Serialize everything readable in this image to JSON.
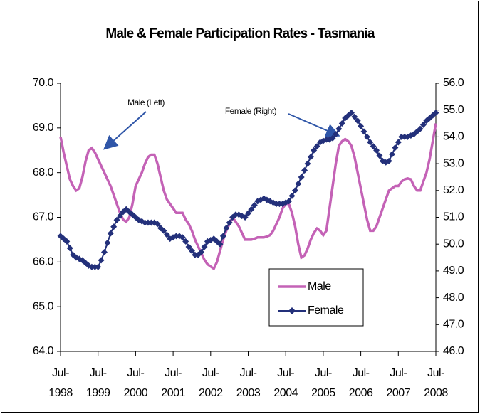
{
  "chart_data": {
    "type": "line",
    "title": "Male & Female Participation Rates - Tasmania",
    "categories": [
      "Jul-1998",
      null,
      null,
      null,
      null,
      null,
      null,
      null,
      null,
      null,
      null,
      null,
      "Jul-1999",
      null,
      null,
      null,
      null,
      null,
      null,
      null,
      null,
      null,
      null,
      null,
      "Jul-2000",
      null,
      null,
      null,
      null,
      null,
      null,
      null,
      null,
      null,
      null,
      null,
      "Jul-2001",
      null,
      null,
      null,
      null,
      null,
      null,
      null,
      null,
      null,
      null,
      null,
      "Jul-2002",
      null,
      null,
      null,
      null,
      null,
      null,
      null,
      null,
      null,
      null,
      null,
      "Jul-2003",
      null,
      null,
      null,
      null,
      null,
      null,
      null,
      null,
      null,
      null,
      null,
      "Jul-2004",
      null,
      null,
      null,
      null,
      null,
      null,
      null,
      null,
      null,
      null,
      null,
      "Jul-2005",
      null,
      null,
      null,
      null,
      null,
      null,
      null,
      null,
      null,
      null,
      null,
      "Jul-2006",
      null,
      null,
      null,
      null,
      null,
      null,
      null,
      null,
      null,
      null,
      null,
      "Jul-2007",
      null,
      null,
      null,
      null,
      null,
      null,
      null,
      null,
      null,
      null,
      null,
      "Jul-2008"
    ],
    "series": [
      {
        "name": "Male",
        "color": "#c462b6",
        "axis": "y",
        "values": [
          68.8,
          68.45,
          68.15,
          67.85,
          67.7,
          67.6,
          67.65,
          67.9,
          68.25,
          68.5,
          68.55,
          68.45,
          68.3,
          68.15,
          68.0,
          67.85,
          67.7,
          67.5,
          67.3,
          67.1,
          66.95,
          66.9,
          67.0,
          67.3,
          67.7,
          67.85,
          68.0,
          68.2,
          68.35,
          68.4,
          68.4,
          68.2,
          67.9,
          67.6,
          67.4,
          67.3,
          67.2,
          67.1,
          67.1,
          67.1,
          66.95,
          66.85,
          66.7,
          66.5,
          66.35,
          66.2,
          66.05,
          65.95,
          65.9,
          65.85,
          66.0,
          66.25,
          66.5,
          66.7,
          66.85,
          67.0,
          66.9,
          66.8,
          66.65,
          66.5,
          66.5,
          66.5,
          66.52,
          66.55,
          66.55,
          66.55,
          66.57,
          66.6,
          66.7,
          66.85,
          67.0,
          67.2,
          67.3,
          67.3,
          67.1,
          66.8,
          66.4,
          66.1,
          66.15,
          66.3,
          66.5,
          66.65,
          66.75,
          66.7,
          66.6,
          66.7,
          67.2,
          67.7,
          68.2,
          68.6,
          68.7,
          68.75,
          68.7,
          68.6,
          68.35,
          68.0,
          67.65,
          67.3,
          66.95,
          66.7,
          66.7,
          66.8,
          67.0,
          67.2,
          67.4,
          67.6,
          67.65,
          67.7,
          67.7,
          67.8,
          67.85,
          67.87,
          67.85,
          67.7,
          67.6,
          67.6,
          67.8,
          68.0,
          68.3,
          68.7,
          69.1
        ]
      },
      {
        "name": "Female",
        "color": "#23307a",
        "axis": "y2",
        "marker": "diamond",
        "values": [
          50.3,
          50.2,
          50.1,
          49.85,
          49.6,
          49.5,
          49.45,
          49.4,
          49.3,
          49.2,
          49.15,
          49.15,
          49.15,
          49.4,
          49.7,
          50.05,
          50.4,
          50.65,
          50.9,
          51.05,
          51.2,
          51.3,
          51.2,
          51.1,
          51.0,
          50.9,
          50.85,
          50.8,
          50.8,
          50.8,
          50.8,
          50.75,
          50.6,
          50.5,
          50.35,
          50.2,
          50.25,
          50.3,
          50.3,
          50.25,
          50.1,
          49.9,
          49.75,
          49.6,
          49.6,
          49.7,
          49.9,
          50.1,
          50.15,
          50.2,
          50.1,
          50.0,
          50.3,
          50.6,
          50.8,
          51.0,
          51.1,
          51.1,
          51.05,
          51.0,
          51.15,
          51.3,
          51.45,
          51.6,
          51.65,
          51.7,
          51.65,
          51.6,
          51.55,
          51.5,
          51.5,
          51.5,
          51.55,
          51.6,
          51.8,
          52.0,
          52.25,
          52.5,
          52.75,
          53.0,
          53.25,
          53.5,
          53.65,
          53.8,
          53.85,
          53.9,
          53.9,
          53.95,
          54.1,
          54.3,
          54.5,
          54.7,
          54.8,
          54.9,
          54.75,
          54.6,
          54.4,
          54.2,
          54.0,
          53.8,
          53.65,
          53.5,
          53.3,
          53.1,
          53.05,
          53.1,
          53.35,
          53.6,
          53.8,
          54.0,
          54.0,
          54.0,
          54.05,
          54.1,
          54.2,
          54.3,
          54.45,
          54.6,
          54.7,
          54.8,
          54.9
        ]
      }
    ],
    "ylim": [
      64,
      70
    ],
    "yticks": [
      {
        "value": 64,
        "label": "64.0"
      },
      {
        "value": 65,
        "label": "65.0"
      },
      {
        "value": 66,
        "label": "66.0"
      },
      {
        "value": 67,
        "label": "67.0"
      },
      {
        "value": 68,
        "label": "68.0"
      },
      {
        "value": 69,
        "label": "69.0"
      },
      {
        "value": 70,
        "label": "70.0"
      }
    ],
    "y2lim": [
      46,
      56
    ],
    "y2ticks": [
      {
        "value": 46,
        "label": "46.0"
      },
      {
        "value": 47,
        "label": "47.0"
      },
      {
        "value": 48,
        "label": "48.0"
      },
      {
        "value": 49,
        "label": "49.0"
      },
      {
        "value": 50,
        "label": "50.0"
      },
      {
        "value": 51,
        "label": "51.0"
      },
      {
        "value": 52,
        "label": "52.0"
      },
      {
        "value": 53,
        "label": "53.0"
      },
      {
        "value": 54,
        "label": "54.0"
      },
      {
        "value": 55,
        "label": "55.0"
      },
      {
        "value": 56,
        "label": "56.0"
      }
    ],
    "annotations": [
      "Male (Left)",
      "Female (Right)"
    ],
    "legend": "inside-lower-right"
  }
}
